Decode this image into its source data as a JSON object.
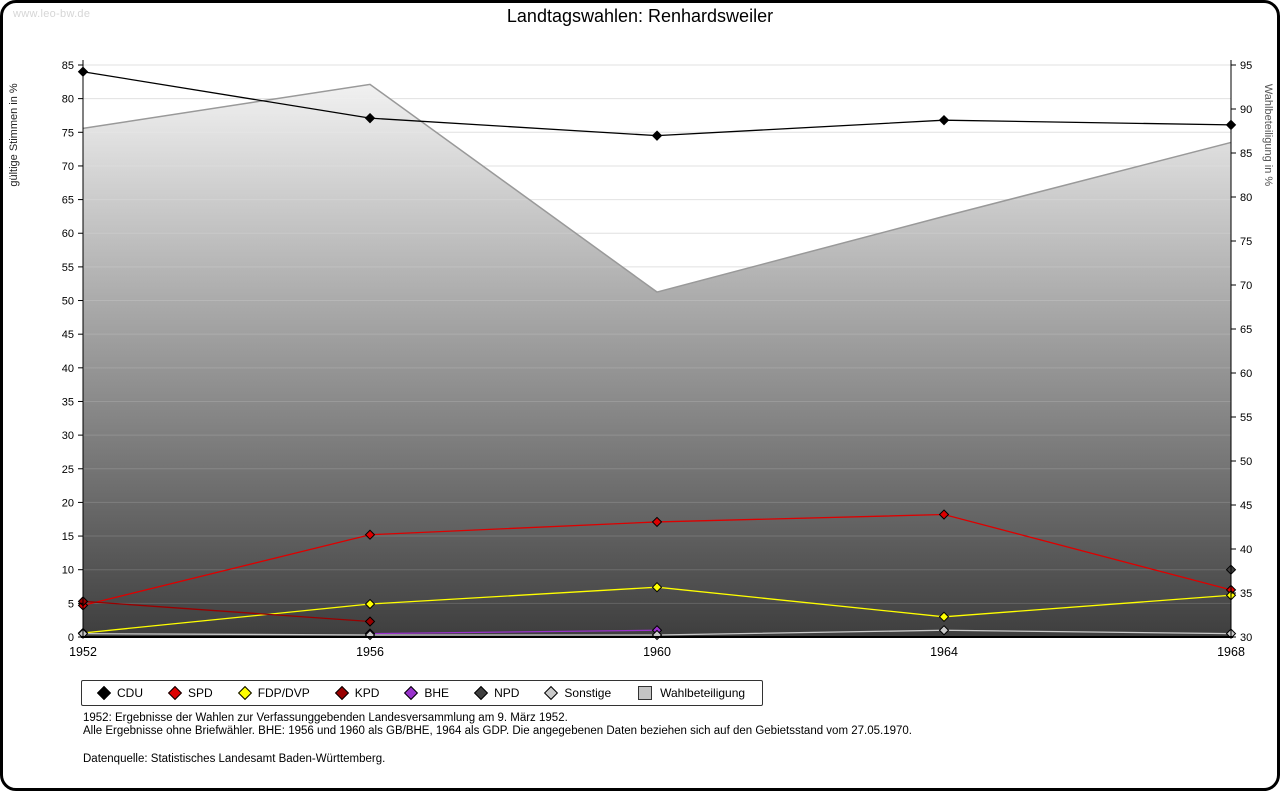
{
  "page": {
    "watermark": "www.leo-bw.de",
    "title": "Landtagswahlen: Renhardsweiler",
    "footnotes": [
      "1952: Ergebnisse der Wahlen zur Verfassunggebenden Landesversammlung am 9. März 1952.",
      "Alle Ergebnisse ohne Briefwähler. BHE: 1956 und 1960 als GB/BHE, 1964 als GDP. Die angegebenen Daten beziehen sich auf den Gebietsstand vom 27.05.1970.",
      "Datenquelle: Statistisches Landesamt Baden-Württemberg."
    ]
  },
  "chart_data": {
    "type": "line",
    "title": "Landtagswahlen: Renhardsweiler",
    "x": [
      "1952",
      "1956",
      "1960",
      "1964",
      "1968"
    ],
    "left_axis": {
      "label": "gültige Stimmen in %",
      "min": 0,
      "max": 85,
      "tick_step": 5
    },
    "right_axis": {
      "label": "Wahlbeteiligung in %",
      "min": 30,
      "max": 95,
      "tick_step": 5
    },
    "grid": "horizontal",
    "legend_position": "bottom",
    "series": [
      {
        "name": "CDU",
        "axis": "left",
        "color": "#000000",
        "values": [
          84.0,
          77.1,
          74.5,
          76.8,
          76.1
        ]
      },
      {
        "name": "SPD",
        "axis": "left",
        "color": "#dd0000",
        "values": [
          4.7,
          15.2,
          17.1,
          18.2,
          7.0
        ]
      },
      {
        "name": "FDP/DVP",
        "axis": "left",
        "color": "#ffff00",
        "values": [
          0.6,
          4.9,
          7.4,
          3.0,
          6.2
        ]
      },
      {
        "name": "KPD",
        "axis": "left",
        "color": "#990000",
        "values": [
          5.3,
          2.3,
          null,
          null,
          null
        ]
      },
      {
        "name": "BHE",
        "axis": "left",
        "color": "#9932cc",
        "values": [
          null,
          0.5,
          1.0,
          null,
          null
        ]
      },
      {
        "name": "NPD",
        "axis": "left",
        "color": "#3f3f3f",
        "values": [
          null,
          null,
          null,
          null,
          10.0
        ]
      },
      {
        "name": "Sonstige",
        "axis": "left",
        "color": "#c9c9c9",
        "values": [
          0.5,
          0.3,
          0.3,
          1.0,
          0.5
        ]
      }
    ],
    "area_series": {
      "name": "Wahlbeteiligung",
      "axis": "right",
      "line_color": "#999999",
      "gradient_top": "#f1f1f1",
      "gradient_bottom": "#3e3e3e",
      "values": [
        87.8,
        92.8,
        69.2,
        77.8,
        86.2
      ]
    }
  }
}
